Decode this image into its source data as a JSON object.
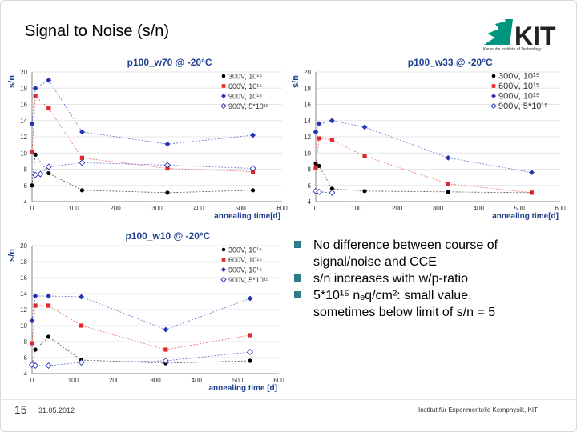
{
  "slide": {
    "title": "Signal to Noise (s/n)",
    "page_number": "15",
    "date": "31.05.2012",
    "institute": "Institut für Experimentelle Kernphysik, KIT",
    "logo_text": "KIT",
    "logo_subtitle": "Karlsruhe Institute of Technology"
  },
  "bullets": [
    "No difference between course of signal/noise and CCE",
    "s/n increases with w/p-ratio",
    "5*10¹⁵ nₑq/cm²: small value, sometimes below limit of s/n = 5"
  ],
  "colors": {
    "300V": "#000000",
    "600V": "#e3262b",
    "900V": "#2432b4",
    "900V_5e15": "#2432b4",
    "bullet": "#2e7b8a",
    "title_blue": "#1f3f8f",
    "kit_green": "#00967d"
  },
  "chart_data": [
    {
      "type": "scatter",
      "title": "p100_w70 @ -20°C",
      "xlabel": "annealing time[d]",
      "ylabel": "s/n",
      "xlim": [
        0,
        600
      ],
      "ylim": [
        4,
        20
      ],
      "xticks": [
        0,
        100,
        200,
        300,
        400,
        500,
        600
      ],
      "yticks": [
        4,
        6,
        8,
        10,
        12,
        14,
        16,
        18,
        20
      ],
      "legend_placement": "top-right",
      "series": [
        {
          "name": "300V, 10¹⁵",
          "marker": "circle",
          "color": "#000000",
          "x": [
            0,
            8,
            40,
            120,
            325,
            530
          ],
          "y": [
            6.0,
            9.8,
            7.5,
            5.4,
            5.1,
            5.4
          ]
        },
        {
          "name": "600V, 10¹⁵",
          "marker": "square",
          "color": "#e3262b",
          "x": [
            0,
            8,
            40,
            120,
            325,
            530
          ],
          "y": [
            10.1,
            17.0,
            15.5,
            9.4,
            8.1,
            7.7
          ]
        },
        {
          "name": "900V, 10¹⁵",
          "marker": "diamond",
          "color": "#2432b4",
          "x": [
            0,
            8,
            40,
            120,
            325,
            530
          ],
          "y": [
            13.6,
            18.0,
            19.0,
            12.6,
            11.1,
            12.2
          ]
        },
        {
          "name": "900V, 5*10¹⁵",
          "marker": "open-diamond",
          "color": "#2432b4",
          "x": [
            8,
            20,
            40,
            120,
            325,
            530
          ],
          "y": [
            7.3,
            7.4,
            8.3,
            8.8,
            8.5,
            8.1
          ]
        }
      ]
    },
    {
      "type": "scatter",
      "title": "p100_w33 @ -20°C",
      "xlabel": "annealing time[d]",
      "ylabel": "s/n",
      "xlim": [
        0,
        600
      ],
      "ylim": [
        4,
        20
      ],
      "xticks": [
        0,
        100,
        200,
        300,
        400,
        500,
        600
      ],
      "yticks": [
        4,
        6,
        8,
        10,
        12,
        14,
        16,
        18,
        20
      ],
      "legend_placement": "top-right",
      "series": [
        {
          "name": "300V, 10¹⁵",
          "marker": "circle",
          "color": "#000000",
          "x": [
            0,
            8,
            40,
            120,
            325,
            530
          ],
          "y": [
            8.7,
            8.4,
            5.6,
            5.3,
            5.2,
            5.1
          ]
        },
        {
          "name": "600V, 10¹⁵",
          "marker": "square",
          "color": "#e3262b",
          "x": [
            0,
            8,
            40,
            120,
            325,
            530
          ],
          "y": [
            8.2,
            11.8,
            11.6,
            9.6,
            6.2,
            5.1
          ]
        },
        {
          "name": "900V, 10¹⁵",
          "marker": "diamond",
          "color": "#2432b4",
          "x": [
            0,
            8,
            40,
            120,
            325,
            530
          ],
          "y": [
            12.6,
            13.6,
            14.0,
            13.2,
            9.4,
            7.6
          ]
        },
        {
          "name": "900V, 5*10¹⁵",
          "marker": "open-diamond",
          "color": "#2432b4",
          "x": [
            0,
            8,
            40
          ],
          "y": [
            5.3,
            5.2,
            5.1
          ]
        }
      ]
    },
    {
      "type": "scatter",
      "title": "p100_w10 @ -20°C",
      "xlabel": "annealing time [d]",
      "ylabel": "s/n",
      "xlim": [
        0,
        600
      ],
      "ylim": [
        4,
        20
      ],
      "xticks": [
        0,
        100,
        200,
        300,
        400,
        500,
        600
      ],
      "yticks": [
        4,
        6,
        8,
        10,
        12,
        14,
        16,
        18,
        20
      ],
      "legend_placement": "top-right",
      "series": [
        {
          "name": "300V, 10¹⁵",
          "marker": "circle",
          "color": "#000000",
          "x": [
            0,
            8,
            40,
            120,
            325,
            530
          ],
          "y": [
            5.1,
            7.0,
            8.6,
            5.7,
            5.3,
            5.6
          ]
        },
        {
          "name": "600V, 10¹⁵",
          "marker": "square",
          "color": "#e3262b",
          "x": [
            0,
            8,
            40,
            120,
            325,
            530
          ],
          "y": [
            7.8,
            12.5,
            12.5,
            10.0,
            7.0,
            8.8
          ]
        },
        {
          "name": "900V, 10¹⁵",
          "marker": "diamond",
          "color": "#2432b4",
          "x": [
            0,
            8,
            40,
            120,
            325,
            530
          ],
          "y": [
            10.6,
            13.7,
            13.7,
            13.6,
            9.5,
            13.4
          ]
        },
        {
          "name": "900V, 5*10¹⁵",
          "marker": "open-diamond",
          "color": "#2432b4",
          "x": [
            0,
            8,
            40,
            120,
            325,
            530
          ],
          "y": [
            5.1,
            5.0,
            5.0,
            5.4,
            5.6,
            6.7
          ]
        }
      ]
    }
  ]
}
